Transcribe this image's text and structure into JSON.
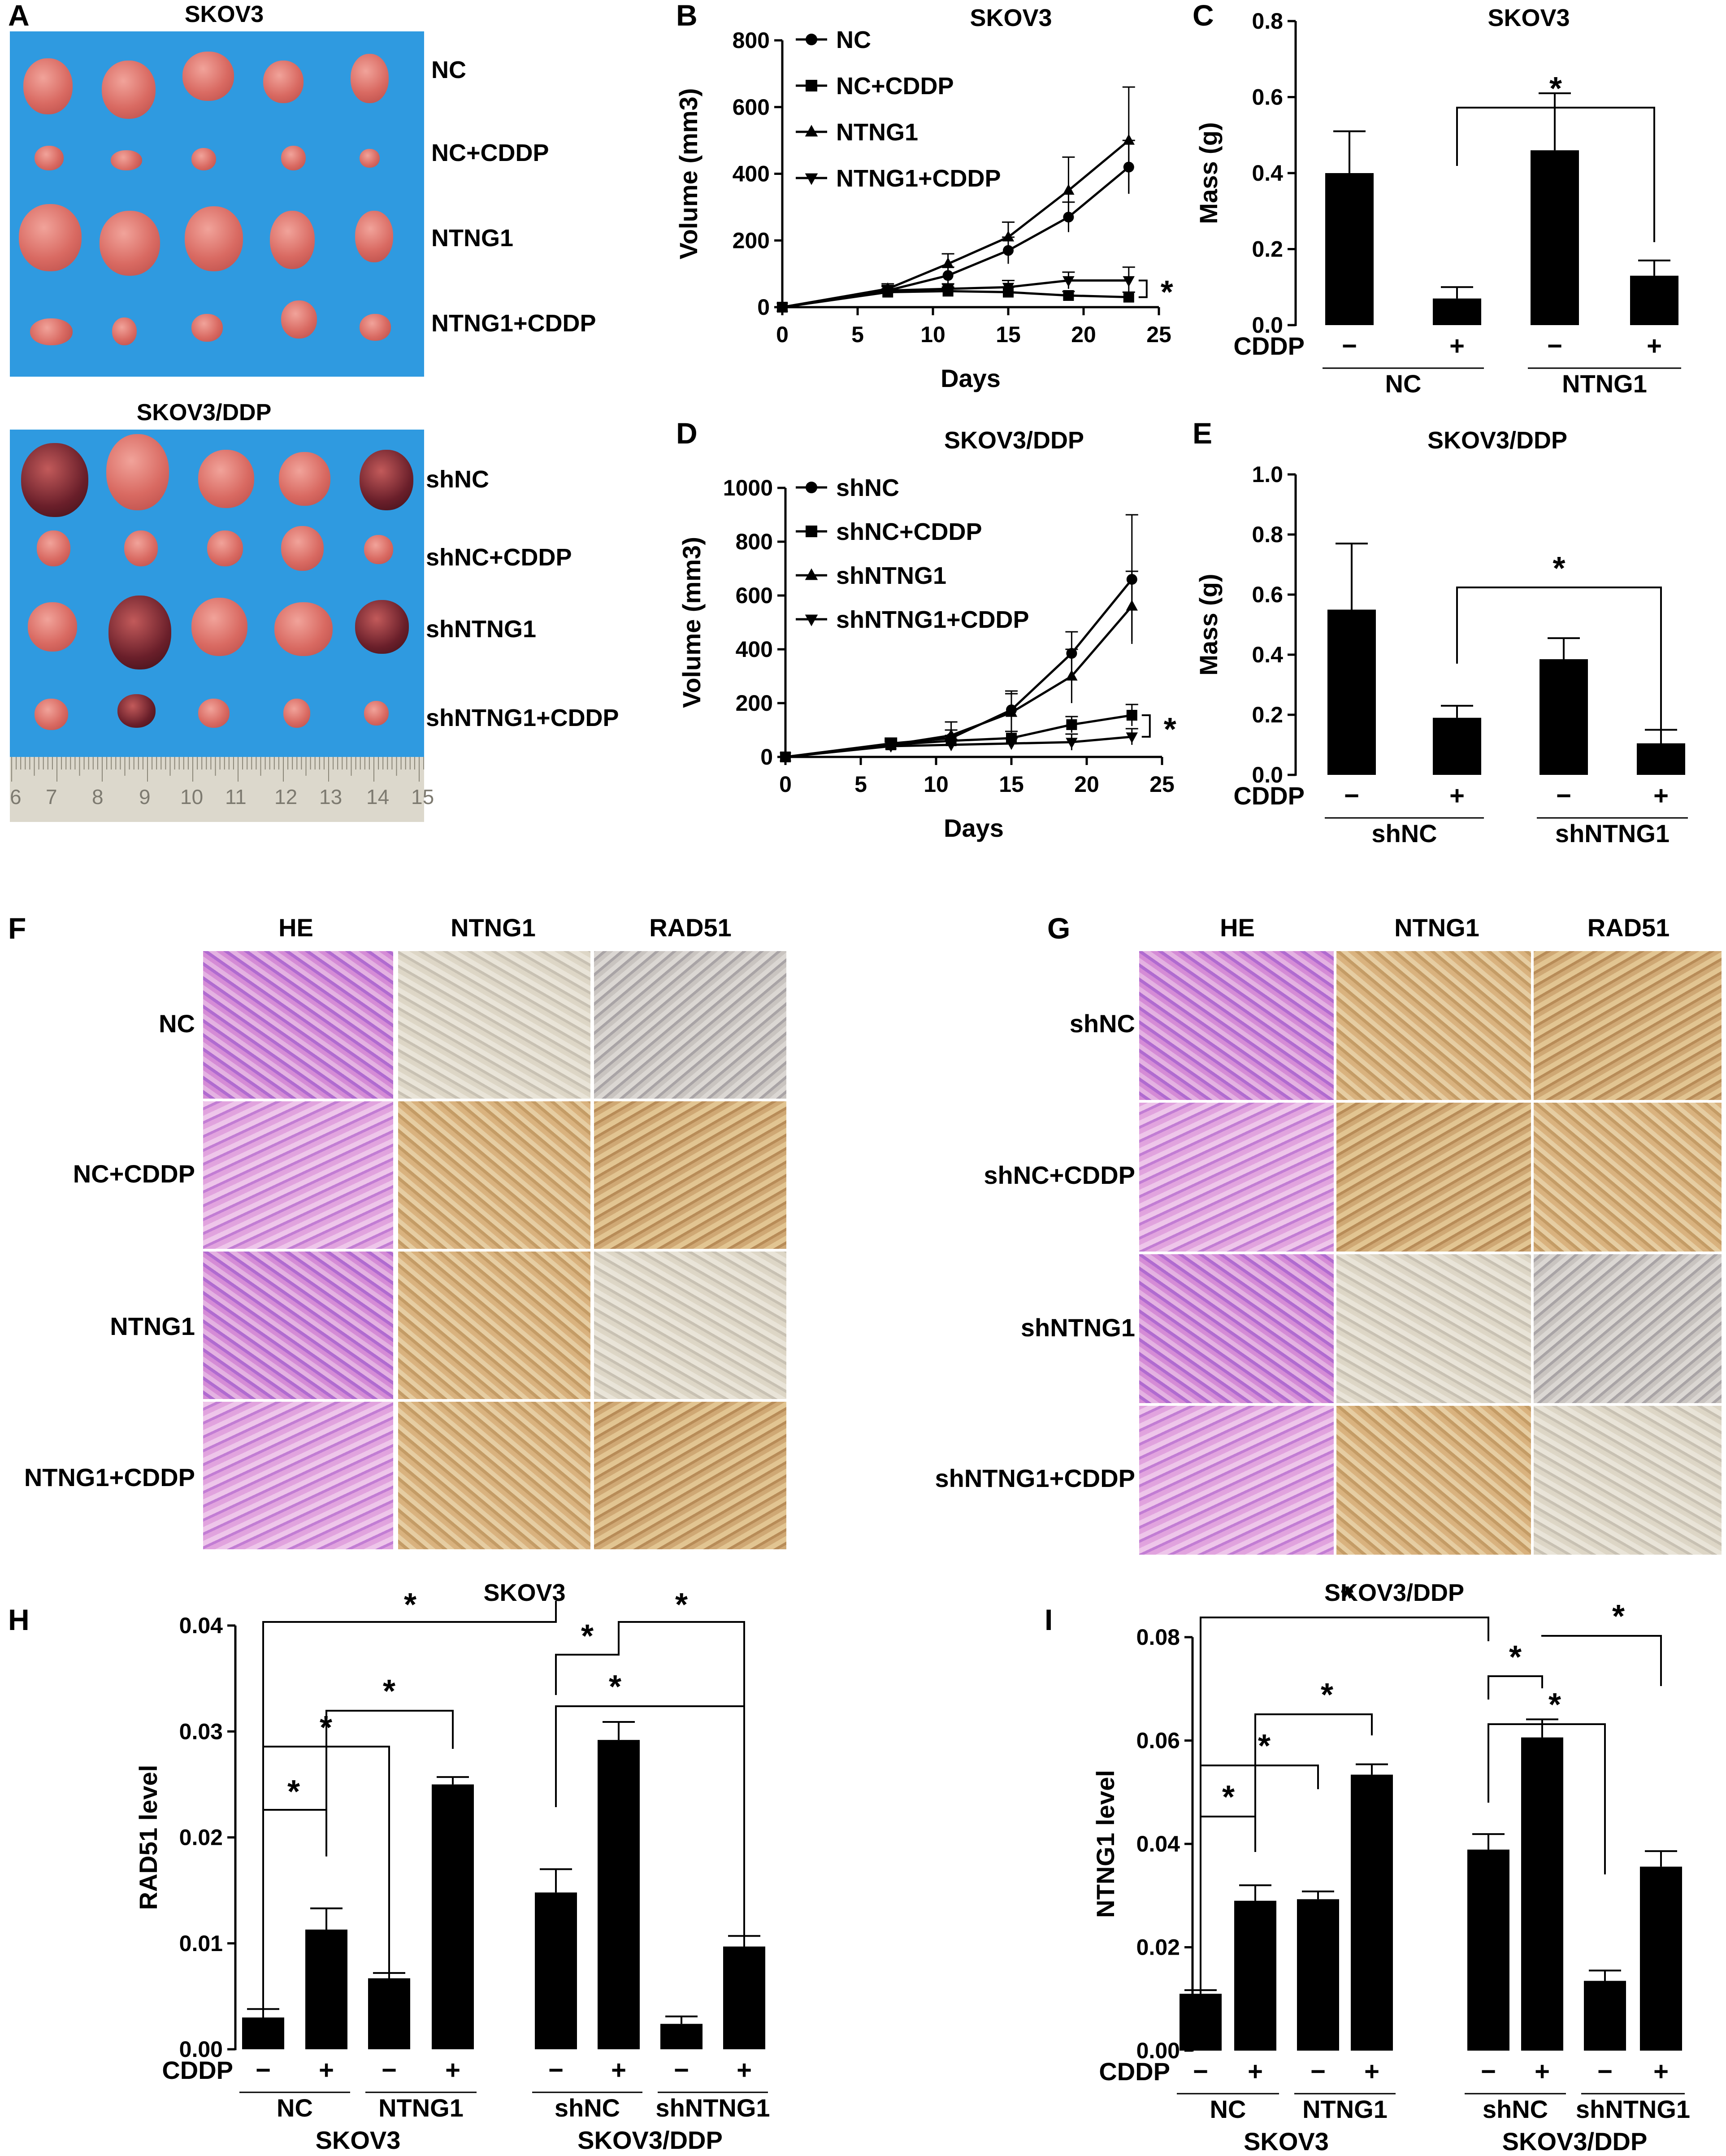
{
  "panel_labels": {
    "A": "A",
    "B": "B",
    "C": "C",
    "D": "D",
    "E": "E",
    "F": "F",
    "G": "G",
    "H": "H",
    "I": "I"
  },
  "photos": {
    "skov3": {
      "title": "SKOV3",
      "rows": [
        "NC",
        "NC+CDDP",
        "NTNG1",
        "NTNG1+CDDP"
      ]
    },
    "skov3ddp": {
      "title": "SKOV3/DDP",
      "rows": [
        "shNC",
        "shNC+CDDP",
        "shNTNG1",
        "shNTNG1+CDDP"
      ]
    },
    "ruler_numbers": [
      "6",
      "7",
      "8",
      "9",
      "10",
      "11",
      "12",
      "13",
      "14",
      "15"
    ]
  },
  "ihc": {
    "f": {
      "columns": [
        "HE",
        "NTNG1",
        "RAD51"
      ],
      "rows": [
        "NC",
        "NC+CDDP",
        "NTNG1",
        "NTNG1+CDDP"
      ]
    },
    "g": {
      "columns": [
        "HE",
        "NTNG1",
        "RAD51"
      ],
      "rows": [
        "shNC",
        "shNC+CDDP",
        "shNTNG1",
        "shNTNG1+CDDP"
      ]
    }
  },
  "colors": {
    "bar": "#000000",
    "photo_bg": "#2f9ae0"
  },
  "chart_data": [
    {
      "id": "B",
      "type": "line",
      "title": "SKOV3",
      "xlabel": "Days",
      "ylabel": "Volume (mm3)",
      "x": [
        0,
        7,
        11,
        15,
        19,
        23
      ],
      "xlim": [
        0,
        25
      ],
      "ylim": [
        0,
        800
      ],
      "xticks": [
        0,
        5,
        10,
        15,
        20,
        25
      ],
      "yticks": [
        0,
        200,
        400,
        600,
        800
      ],
      "series": [
        {
          "name": "NC",
          "marker": "circle",
          "values": [
            0,
            50,
            95,
            170,
            270,
            420
          ],
          "errors": [
            0,
            15,
            25,
            40,
            45,
            80
          ]
        },
        {
          "name": "NC+CDDP",
          "marker": "square",
          "values": [
            0,
            45,
            48,
            45,
            35,
            30
          ],
          "errors": [
            0,
            10,
            12,
            15,
            12,
            15
          ]
        },
        {
          "name": "NTNG1",
          "marker": "triangle",
          "values": [
            0,
            55,
            130,
            210,
            350,
            500
          ],
          "errors": [
            0,
            15,
            30,
            45,
            100,
            160
          ]
        },
        {
          "name": "NTNG1+CDDP",
          "marker": "triangle-down",
          "values": [
            0,
            50,
            55,
            60,
            80,
            80
          ],
          "errors": [
            0,
            12,
            15,
            20,
            25,
            40
          ]
        }
      ],
      "annotation": "*"
    },
    {
      "id": "C",
      "type": "bar",
      "title": "SKOV3",
      "ylabel": "Mass (g)",
      "ylim": [
        0,
        0.8
      ],
      "yticks": [
        "0.0",
        "0.2",
        "0.4",
        "0.6",
        "0.8"
      ],
      "categories": [
        "NC −",
        "NC +",
        "NTNG1 −",
        "NTNG1 +"
      ],
      "values": [
        0.4,
        0.07,
        0.46,
        0.13
      ],
      "errors": [
        0.11,
        0.03,
        0.15,
        0.04
      ],
      "cddp_label": "CDDP",
      "signs": [
        "−",
        "+",
        "−",
        "+"
      ],
      "groups": [
        "NC",
        "NTNG1"
      ],
      "annotation": "*"
    },
    {
      "id": "D",
      "type": "line",
      "title": "SKOV3/DDP",
      "xlabel": "Days",
      "ylabel": "Volume (mm3)",
      "x": [
        0,
        7,
        11,
        15,
        19,
        23
      ],
      "xlim": [
        0,
        25
      ],
      "ylim": [
        0,
        1000
      ],
      "xticks": [
        0,
        5,
        10,
        15,
        20,
        25
      ],
      "yticks": [
        0,
        200,
        400,
        600,
        800,
        1000
      ],
      "series": [
        {
          "name": "shNC",
          "marker": "circle",
          "values": [
            0,
            50,
            70,
            175,
            385,
            660
          ],
          "errors": [
            0,
            20,
            30,
            60,
            80,
            240
          ]
        },
        {
          "name": "shNC+CDDP",
          "marker": "square",
          "values": [
            0,
            45,
            60,
            70,
            120,
            155
          ],
          "errors": [
            0,
            15,
            20,
            25,
            30,
            40
          ]
        },
        {
          "name": "shNTNG1",
          "marker": "triangle",
          "values": [
            0,
            45,
            80,
            165,
            300,
            560
          ],
          "errors": [
            0,
            20,
            50,
            80,
            100,
            130
          ]
        },
        {
          "name": "shNTNG1+CDDP",
          "marker": "triangle-down",
          "values": [
            0,
            40,
            45,
            50,
            55,
            75
          ],
          "errors": [
            0,
            15,
            20,
            20,
            30,
            30
          ]
        }
      ],
      "annotation": "*"
    },
    {
      "id": "E",
      "type": "bar",
      "title": "SKOV3/DDP",
      "ylabel": "Mass (g)",
      "ylim": [
        0,
        1.0
      ],
      "yticks": [
        "0.0",
        "0.2",
        "0.4",
        "0.6",
        "0.8",
        "1.0"
      ],
      "categories": [
        "shNC −",
        "shNC +",
        "shNTNG1 −",
        "shNTNG1 +"
      ],
      "values": [
        0.55,
        0.19,
        0.385,
        0.105
      ],
      "errors": [
        0.22,
        0.04,
        0.07,
        0.045
      ],
      "cddp_label": "CDDP",
      "signs": [
        "−",
        "+",
        "−",
        "+"
      ],
      "groups": [
        "shNC",
        "shNTNG1"
      ],
      "annotation": "*"
    },
    {
      "id": "H",
      "type": "bar",
      "title": "SKOV3",
      "ylabel": "RAD51 level",
      "ylim": [
        0,
        0.04
      ],
      "yticks": [
        "0.00",
        "0.01",
        "0.02",
        "0.03",
        "0.04"
      ],
      "categories": [
        "NC −",
        "NC +",
        "NTNG1 −",
        "NTNG1 +",
        "shNC −",
        "shNC +",
        "shNTNG1 −",
        "shNTNG1 +"
      ],
      "values": [
        0.003,
        0.0113,
        0.0067,
        0.025,
        0.0148,
        0.0292,
        0.0024,
        0.0097
      ],
      "errors": [
        0.0008,
        0.002,
        0.0005,
        0.0007,
        0.0022,
        0.0017,
        0.0007,
        0.001
      ],
      "cddp_label": "CDDP",
      "signs": [
        "−",
        "+",
        "−",
        "+",
        "−",
        "+",
        "−",
        "+"
      ],
      "groups": [
        "NC",
        "NTNG1",
        "shNC",
        "shNTNG1"
      ],
      "cell_lines": [
        "SKOV3",
        "SKOV3/DDP"
      ],
      "top_title": "SKOV3",
      "annotation": "*"
    },
    {
      "id": "I",
      "type": "bar",
      "title": "SKOV3/DDP",
      "ylabel": "NTNG1 level",
      "ylim": [
        0,
        0.08
      ],
      "yticks": [
        "0.00",
        "0.02",
        "0.04",
        "0.06",
        "0.08"
      ],
      "categories": [
        "NC −",
        "NC +",
        "NTNG1 −",
        "NTNG1 +",
        "shNC −",
        "shNC +",
        "shNTNG1 −",
        "shNTNG1 +"
      ],
      "values": [
        0.011,
        0.029,
        0.0293,
        0.0534,
        0.0389,
        0.0606,
        0.0135,
        0.0356
      ],
      "errors": [
        0.0007,
        0.003,
        0.0015,
        0.002,
        0.003,
        0.0035,
        0.002,
        0.003
      ],
      "cddp_label": "CDDP",
      "signs": [
        "−",
        "+",
        "−",
        "+",
        "−",
        "+",
        "−",
        "+"
      ],
      "groups": [
        "NC",
        "NTNG1",
        "shNC",
        "shNTNG1"
      ],
      "cell_lines": [
        "SKOV3",
        "SKOV3/DDP"
      ],
      "top_title": "SKOV3/DDP",
      "annotation": "*"
    }
  ]
}
